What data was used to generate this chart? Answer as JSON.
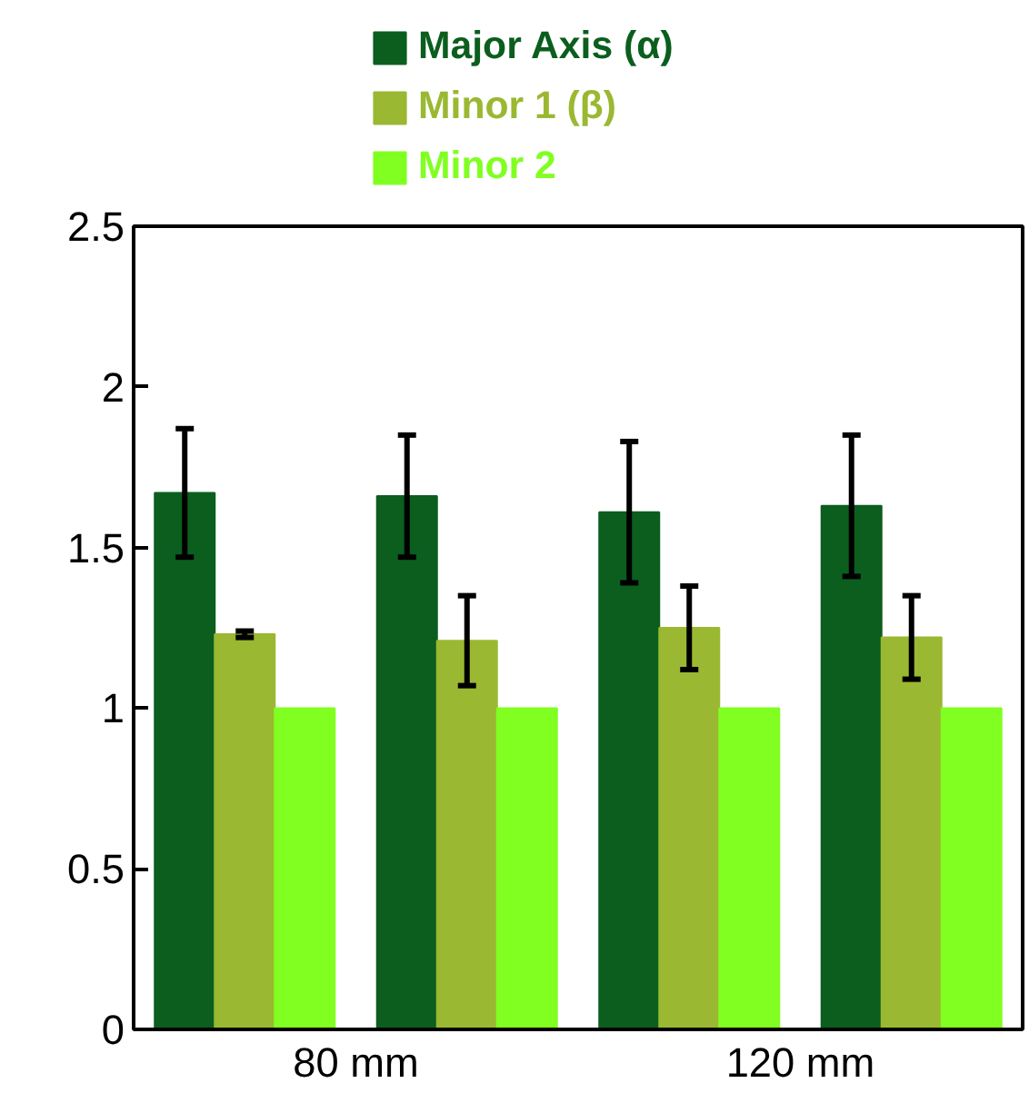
{
  "chart_data": {
    "type": "bar",
    "categories": [
      null,
      null,
      null,
      null
    ],
    "annotations": [
      "80 mm",
      "120 mm"
    ],
    "ylim": [
      0,
      2.5
    ],
    "yticks": [
      0,
      0.5,
      1,
      1.5,
      2,
      2.5
    ],
    "legend": "top",
    "series": [
      {
        "name": "Major Axis (α)",
        "color": "#0b5e1e",
        "values": [
          1.67,
          1.66,
          1.61,
          1.63
        ],
        "errors": [
          [
            1.47,
            1.87
          ],
          [
            1.47,
            1.85
          ],
          [
            1.39,
            1.83
          ],
          [
            1.41,
            1.85
          ]
        ]
      },
      {
        "name": "Minor 1 (β)",
        "color": "#9ab832",
        "values": [
          1.23,
          1.21,
          1.25,
          1.22
        ],
        "errors": [
          [
            1.22,
            1.24
          ],
          [
            1.07,
            1.35
          ],
          [
            1.12,
            1.38
          ],
          [
            1.09,
            1.35
          ]
        ]
      },
      {
        "name": "Minor 2",
        "color": "#80ff20",
        "values": [
          1.0,
          1.0,
          1.0,
          1.0
        ]
      }
    ]
  }
}
